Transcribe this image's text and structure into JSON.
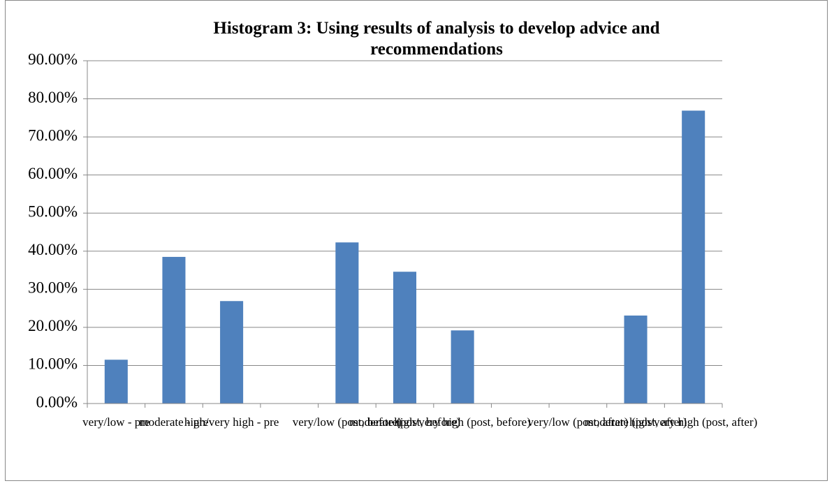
{
  "chart_data": {
    "type": "bar",
    "title": "Histogram 3:  Using results of analysis to develop advice and recommendations",
    "categories": [
      "very/low - pre",
      "moderate - pre",
      "high/very high - pre",
      null,
      "very/low (post, before)",
      "moderate (post, before)",
      "high/very high (post, before)",
      null,
      "very/low (post, after)",
      "moderate (post, after)",
      "high/very high (post, after)"
    ],
    "values": [
      11.5,
      38.5,
      26.9,
      null,
      42.3,
      34.6,
      19.2,
      null,
      0,
      23.1,
      76.9
    ],
    "color": "#4f81bd",
    "ylim": [
      0,
      90
    ],
    "yticks": [
      {
        "value": 0,
        "label": "0.00%"
      },
      {
        "value": 10,
        "label": "10.00%"
      },
      {
        "value": 20,
        "label": "20.00%"
      },
      {
        "value": 30,
        "label": "30.00%"
      },
      {
        "value": 40,
        "label": "40.00%"
      },
      {
        "value": 50,
        "label": "50.00%"
      },
      {
        "value": 60,
        "label": "60.00%"
      },
      {
        "value": 70,
        "label": "70.00%"
      },
      {
        "value": 80,
        "label": "80.00%"
      },
      {
        "value": 90,
        "label": "90.00%"
      }
    ],
    "grid": true
  }
}
